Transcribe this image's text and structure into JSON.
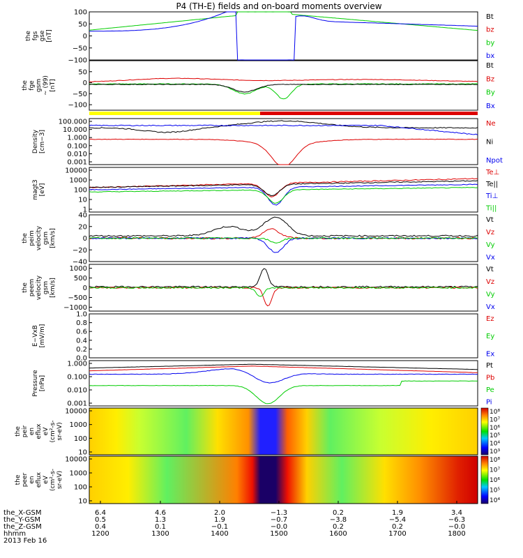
{
  "title": "P4 (TH-E) fields and on-board moments overview",
  "colors": {
    "black": "#000000",
    "red": "#dd0000",
    "green": "#00cc00",
    "blue": "#0000ee",
    "yellow": "#ffff00"
  },
  "chart_data": {
    "type": "line",
    "time_labels": [
      "1200",
      "1300",
      "1400",
      "1500",
      "1600",
      "1700",
      "1800"
    ],
    "panels": [
      {
        "id": "fgs",
        "ylabel": [
          "the",
          "fgs",
          "gse",
          "[nT]"
        ],
        "ticks": [
          "100",
          "50",
          "0",
          "−50",
          "−100"
        ],
        "ylim": [
          -100,
          100
        ],
        "tick_values": [
          100,
          50,
          0,
          -50,
          -100
        ],
        "legend": [
          {
            "text": "Bt",
            "color": "black"
          },
          {
            "text": "bz",
            "color": "red"
          },
          {
            "text": "by",
            "color": "green"
          },
          {
            "text": "bx",
            "color": "blue"
          }
        ]
      },
      {
        "id": "fgs_gsm",
        "ylabel": [
          "the",
          "fge",
          "gsm",
          "~ (99)",
          "[nT]"
        ],
        "ticks": [
          "50",
          "0",
          "−50",
          "−100"
        ],
        "ylim": [
          -125,
          100
        ],
        "tick_values": [
          50,
          0,
          -50,
          -100
        ],
        "legend": [
          {
            "text": "Bt",
            "color": "black"
          },
          {
            "text": "Bz",
            "color": "red"
          },
          {
            "text": "By",
            "color": "green"
          },
          {
            "text": "Bx",
            "color": "blue"
          }
        ]
      },
      {
        "id": "density",
        "ylabel": [
          "Density",
          "[cm−3]"
        ],
        "ticks": [
          "100.000",
          "10.000",
          "1.000",
          "0.100",
          "0.010",
          "0.001"
        ],
        "legend": [
          {
            "text": "Ne",
            "color": "red"
          },
          {
            "text": "Ni",
            "color": "black"
          },
          {
            "text": "Npot",
            "color": "blue"
          }
        ]
      },
      {
        "id": "temp",
        "ylabel": [
          "magt3",
          "[eV]"
        ],
        "ticks": [
          "10000",
          "1000",
          "100",
          "10",
          "1"
        ],
        "legend": [
          {
            "text": "Te⊥",
            "color": "red"
          },
          {
            "text": "Te||",
            "color": "black"
          },
          {
            "text": "Ti⊥",
            "color": "blue"
          },
          {
            "text": "Ti||",
            "color": "green"
          }
        ]
      },
      {
        "id": "vel_peim",
        "ylabel": [
          "the",
          "peim",
          "velocity",
          "gsm",
          "[km/s]"
        ],
        "ticks": [
          "40",
          "20",
          "0",
          "−20",
          "−40"
        ],
        "ylim": [
          -40,
          40
        ],
        "tick_values": [
          40,
          20,
          0,
          -20,
          -40
        ],
        "legend": [
          {
            "text": "Vt",
            "color": "black"
          },
          {
            "text": "Vz",
            "color": "red"
          },
          {
            "text": "Vy",
            "color": "green"
          },
          {
            "text": "Vx",
            "color": "blue"
          }
        ]
      },
      {
        "id": "vel_peem",
        "ylabel": [
          "the",
          "peem",
          "velocity",
          "gsm",
          "[km/s]"
        ],
        "ticks": [
          "1000",
          "500",
          "0",
          "−500",
          "−1000"
        ],
        "ylim": [
          -1200,
          1200
        ],
        "tick_values": [
          1000,
          500,
          0,
          -500,
          -1000
        ],
        "legend": [
          {
            "text": "Vt",
            "color": "black"
          },
          {
            "text": "Vz",
            "color": "red"
          },
          {
            "text": "Vy",
            "color": "green"
          },
          {
            "text": "Vx",
            "color": "blue"
          }
        ]
      },
      {
        "id": "efield",
        "ylabel": [
          "E−VxB",
          "[mV/m]"
        ],
        "ticks": [
          "1.0",
          "0.8",
          "0.6",
          "0.4",
          "0.2",
          "0.0"
        ],
        "ylim": [
          0,
          1
        ],
        "tick_values": [
          1.0,
          0.8,
          0.6,
          0.4,
          0.2,
          0.0
        ],
        "legend": [
          {
            "text": "Ez",
            "color": "red"
          },
          {
            "text": "Ey",
            "color": "green"
          },
          {
            "text": "Ex",
            "color": "blue"
          }
        ]
      },
      {
        "id": "pressure",
        "ylabel": [
          "Pressure",
          "[nPa]"
        ],
        "ticks": [
          "1.000",
          "0.100",
          "0.010",
          "0.001"
        ],
        "legend": [
          {
            "text": "Pt",
            "color": "black"
          },
          {
            "text": "Pb",
            "color": "red"
          },
          {
            "text": "Pe",
            "color": "green"
          },
          {
            "text": "Pi",
            "color": "blue"
          }
        ]
      },
      {
        "id": "peir",
        "ylabel": [
          "the",
          "peir",
          "en",
          "eflux",
          "eV",
          "(cm²-s-",
          "sr-eV)"
        ],
        "ticks": [
          "10000",
          "1000",
          "100",
          "10"
        ],
        "colorbar": [
          "10⁸",
          "10⁷",
          "10⁶",
          "10⁵",
          "10⁴",
          "10³"
        ]
      },
      {
        "id": "peer",
        "ylabel": [
          "the",
          "peer",
          "en",
          "eflux",
          "eV",
          "(cm²-s-",
          "sr-eV)"
        ],
        "ticks": [
          "10000",
          "1000",
          "100",
          "10"
        ],
        "colorbar": [
          "10⁸",
          "10⁷",
          "10⁶",
          "10⁵",
          "10⁴"
        ]
      }
    ],
    "ephemeris": [
      {
        "label": "the_X-GSM",
        "values": [
          "6.4",
          "4.6",
          "2.0",
          "−1.3",
          "0.2",
          "1.9",
          "3.4"
        ]
      },
      {
        "label": "the_Y-GSM",
        "values": [
          "0.5",
          "1.3",
          "1.9",
          "−0.7",
          "−3.8",
          "−5.4",
          "−6.3"
        ]
      },
      {
        "label": "the_Z-GSM",
        "values": [
          "0.4",
          "0.1",
          "−0.1",
          "−0.0",
          "0.2",
          "0.2",
          "−0.0"
        ]
      },
      {
        "label": "hhmm",
        "values": [
          "1200",
          "1300",
          "1400",
          "1500",
          "1600",
          "1700",
          "1800"
        ]
      }
    ],
    "date_label": "2013 Feb 16"
  }
}
